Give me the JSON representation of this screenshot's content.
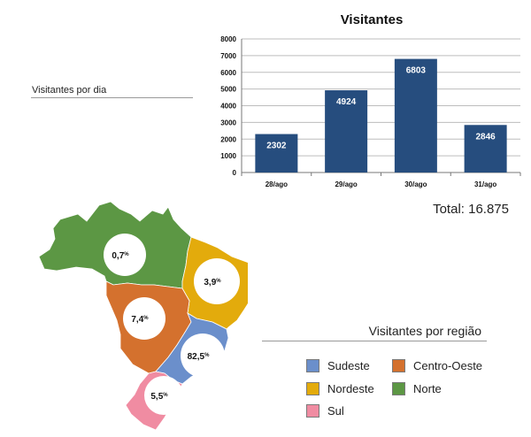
{
  "daily_label": "Visitantes por dia",
  "total_text": "Total: 16.875",
  "region_label": "Visitantes por região",
  "chart_data": [
    {
      "type": "bar",
      "title": "Visitantes",
      "categories": [
        "28/ago",
        "29/ago",
        "30/ago",
        "31/ago"
      ],
      "values": [
        2302,
        4924,
        6803,
        2846
      ],
      "ylim": [
        0,
        8000
      ],
      "yticks": [
        0,
        1000,
        2000,
        3000,
        4000,
        5000,
        6000,
        7000,
        8000
      ],
      "grid": true,
      "bar_color": "#264d7e"
    }
  ],
  "regions": [
    {
      "name": "Sudeste",
      "percent": "82,5",
      "color": "#6b8fcb"
    },
    {
      "name": "Centro-Oeste",
      "percent": "7,4",
      "color": "#d4712e"
    },
    {
      "name": "Nordeste",
      "percent": "3,9",
      "color": "#e3ab0c"
    },
    {
      "name": "Norte",
      "percent": "0,7",
      "color": "#5c9744"
    },
    {
      "name": "Sul",
      "percent": "5,5",
      "color": "#f08ca2"
    }
  ],
  "percent_symbol": "%"
}
